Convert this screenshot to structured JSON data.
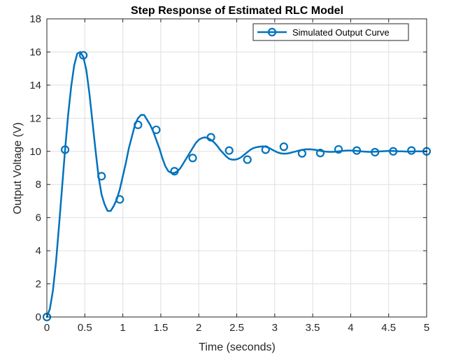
{
  "chart_data": {
    "type": "line",
    "title": "Step Response of Estimated RLC Model",
    "xlabel": "Time (seconds)",
    "ylabel": "Output Voltage (V)",
    "xlim": [
      0,
      5
    ],
    "ylim": [
      0,
      18
    ],
    "xticks": [
      "0",
      "0.5",
      "1",
      "1.5",
      "2",
      "2.5",
      "3",
      "3.5",
      "4",
      "4.5",
      "5"
    ],
    "xtick_values": [
      0,
      0.5,
      1,
      1.5,
      2,
      2.5,
      3,
      3.5,
      4,
      4.5,
      5
    ],
    "yticks": [
      "0",
      "2",
      "4",
      "6",
      "8",
      "10",
      "12",
      "14",
      "16",
      "18"
    ],
    "ytick_values": [
      0,
      2,
      4,
      6,
      8,
      10,
      12,
      14,
      16,
      18
    ],
    "grid": true,
    "legend_position": "top-right",
    "series": [
      {
        "name": "Simulated Output Curve",
        "color": "#0072BD",
        "marker": "circle",
        "curve": {
          "x": [
            0,
            0.04,
            0.08,
            0.12,
            0.16,
            0.2,
            0.24,
            0.28,
            0.32,
            0.36,
            0.4,
            0.44,
            0.48,
            0.52,
            0.56,
            0.6,
            0.64,
            0.68,
            0.72,
            0.76,
            0.8,
            0.84,
            0.88,
            0.92,
            0.96,
            1.0,
            1.04,
            1.08,
            1.12,
            1.16,
            1.2,
            1.24,
            1.28,
            1.32,
            1.36,
            1.4,
            1.44,
            1.48,
            1.52,
            1.56,
            1.6,
            1.64,
            1.68,
            1.72,
            1.76,
            1.8,
            1.84,
            1.88,
            1.92,
            1.96,
            2.0,
            2.04,
            2.08,
            2.12,
            2.16,
            2.2,
            2.24,
            2.28,
            2.32,
            2.36,
            2.4,
            2.44,
            2.48,
            2.52,
            2.56,
            2.6,
            2.64,
            2.68,
            2.72,
            2.76,
            2.8,
            2.84,
            2.88,
            2.92,
            2.96,
            3.0,
            3.04,
            3.08,
            3.12,
            3.16,
            3.2,
            3.24,
            3.28,
            3.32,
            3.36,
            3.4,
            3.44,
            3.48,
            3.52,
            3.56,
            3.6,
            3.64,
            3.68,
            3.72,
            3.76,
            3.8,
            3.84,
            3.88,
            3.92,
            3.96,
            4.0,
            4.04,
            4.08,
            4.12,
            4.16,
            4.2,
            4.24,
            4.28,
            4.32,
            4.36,
            4.4,
            4.44,
            4.48,
            4.52,
            4.56,
            4.6,
            4.64,
            4.68,
            4.72,
            4.76,
            4.8,
            4.84,
            4.88,
            4.92,
            4.96,
            5.0
          ],
          "y": [
            0,
            0.5,
            1.6,
            3.3,
            5.5,
            7.8,
            10.1,
            12.2,
            13.9,
            15.2,
            15.9,
            16.0,
            15.7,
            14.9,
            13.5,
            11.8,
            10.1,
            8.5,
            7.4,
            6.8,
            6.4,
            6.4,
            6.7,
            7.1,
            7.7,
            8.5,
            9.3,
            10.2,
            10.9,
            11.6,
            12.0,
            12.2,
            12.2,
            11.9,
            11.6,
            11.2,
            10.7,
            10.2,
            9.6,
            9.1,
            8.8,
            8.7,
            8.7,
            8.8,
            9.0,
            9.3,
            9.6,
            9.9,
            10.2,
            10.5,
            10.7,
            10.8,
            10.85,
            10.8,
            10.7,
            10.55,
            10.35,
            10.1,
            9.9,
            9.7,
            9.55,
            9.5,
            9.5,
            9.55,
            9.65,
            9.8,
            9.95,
            10.1,
            10.2,
            10.25,
            10.28,
            10.3,
            10.28,
            10.22,
            10.12,
            10.02,
            9.93,
            9.88,
            9.86,
            9.87,
            9.9,
            9.95,
            10.0,
            10.05,
            10.09,
            10.12,
            10.13,
            10.12,
            10.1,
            10.07,
            10.03,
            10.0,
            9.98,
            9.97,
            9.97,
            9.98,
            10.0,
            10.02,
            10.04,
            10.05,
            10.05,
            10.04,
            10.03,
            10.01,
            9.99,
            9.98,
            9.97,
            9.97,
            9.98,
            9.99,
            10.0,
            10.01,
            10.02,
            10.02,
            10.02,
            10.01,
            10.0,
            10.0,
            9.99,
            9.99,
            9.99,
            10.0,
            10.0,
            10.0,
            10.0,
            10.0
          ]
        },
        "markers": {
          "x": [
            0,
            0.24,
            0.48,
            0.72,
            0.96,
            1.2,
            1.44,
            1.68,
            1.92,
            2.16,
            2.4,
            2.64,
            2.88,
            3.12,
            3.36,
            3.6,
            3.84,
            4.08,
            4.32,
            4.56,
            4.8,
            5.04
          ],
          "y": [
            0,
            10.1,
            15.8,
            8.5,
            7.1,
            11.6,
            11.3,
            8.8,
            9.6,
            10.85,
            10.05,
            9.5,
            10.1,
            10.28,
            9.88,
            9.9,
            10.12,
            10.05,
            9.95,
            10.0,
            10.05,
            10.0
          ]
        }
      }
    ]
  }
}
